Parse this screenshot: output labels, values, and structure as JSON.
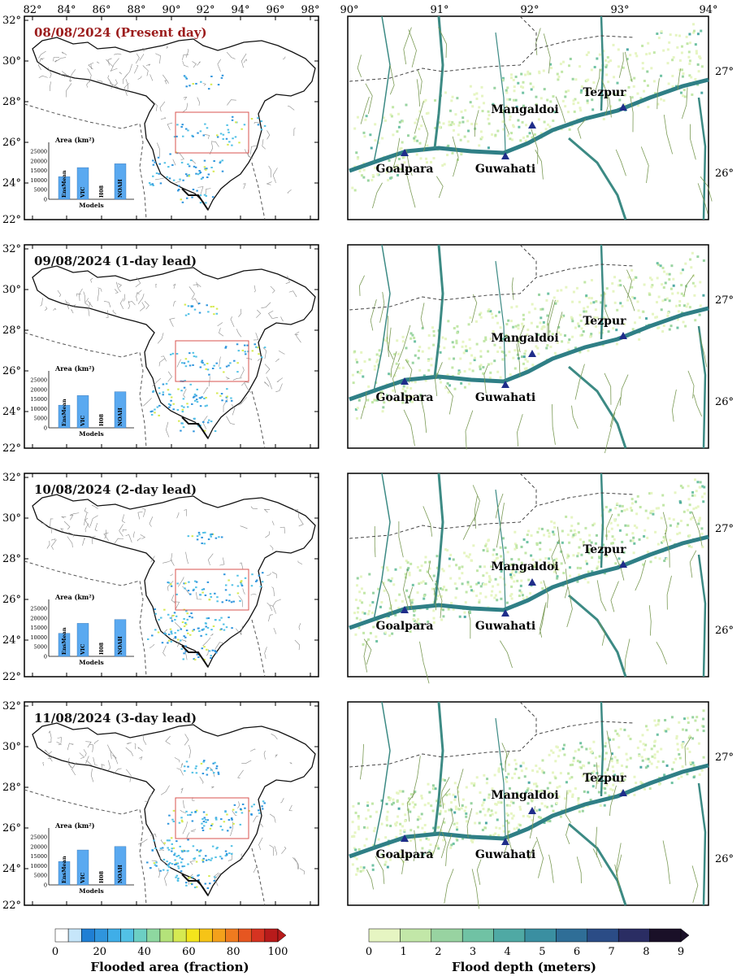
{
  "top_axis": {
    "lon_labels": [
      "82°",
      "84°",
      "86°",
      "88°",
      "90°",
      "92°",
      "94°",
      "96°",
      "98°"
    ]
  },
  "left_axis": {
    "lat_labels": [
      "32°",
      "30°",
      "28°",
      "26°",
      "24°",
      "22°"
    ]
  },
  "right_top_axis": {
    "lon_labels": [
      "90°",
      "91°",
      "92°",
      "93°",
      "94°"
    ]
  },
  "right_side_axis": {
    "lat_labels": [
      "27°",
      "26°"
    ]
  },
  "panels": [
    {
      "date_label": "08/08/2024 (Present day)",
      "highlight": true,
      "bars": {
        "EnsMean": 11800,
        "VIC": 16500,
        "H08": 0,
        "NOAH": 18500
      }
    },
    {
      "date_label": "09/08/2024 (1-day lead)",
      "highlight": false,
      "bars": {
        "EnsMean": 11800,
        "VIC": 16800,
        "H08": 0,
        "NOAH": 18800
      }
    },
    {
      "date_label": "10/08/2024 (2-day lead)",
      "highlight": false,
      "bars": {
        "EnsMean": 12000,
        "VIC": 17200,
        "H08": 0,
        "NOAH": 19200
      }
    },
    {
      "date_label": "11/08/2024 (3-day lead)",
      "highlight": false,
      "bars": {
        "EnsMean": 12200,
        "VIC": 18200,
        "H08": 0,
        "NOAH": 20000
      }
    }
  ],
  "inset_chart": {
    "ylabel": "Area (km²)",
    "xlabel": "Models",
    "categories": [
      "EnsMean",
      "VIC",
      "H08",
      "NOAH"
    ],
    "yticks": [
      "25000",
      "20000",
      "15000",
      "10000",
      "5000",
      "0"
    ],
    "ylim": [
      0,
      25000
    ],
    "bar_color": "#5aa9f0"
  },
  "cities": [
    {
      "name": "Goalpara"
    },
    {
      "name": "Guwahati"
    },
    {
      "name": "Mangaldoi"
    },
    {
      "name": "Tezpur"
    }
  ],
  "legend_left": {
    "title": "Flooded area (fraction)",
    "ticks": [
      "0",
      "20",
      "40",
      "60",
      "80",
      "100"
    ],
    "colors": [
      "#ffffff",
      "#c6e6fa",
      "#1f7fd4",
      "#2f95dd",
      "#3faee8",
      "#52c1e6",
      "#6ccfc4",
      "#8ed8a0",
      "#b4e27a",
      "#d6ea52",
      "#f3e51c",
      "#f6c417",
      "#f4a11b",
      "#ef7b1f",
      "#e65621",
      "#d53321",
      "#b81b1b"
    ]
  },
  "legend_right": {
    "title": "Flood depth (meters)",
    "ticks": [
      "0",
      "1",
      "2",
      "3",
      "4",
      "5",
      "6",
      "7",
      "8",
      "9"
    ],
    "colors": [
      "#e6f5c2",
      "#c2e7a8",
      "#98d3a1",
      "#70c2a4",
      "#4fa9a4",
      "#3a8fa1",
      "#2f6e97",
      "#2b4c86",
      "#2a2d63",
      "#1a1028"
    ]
  }
}
